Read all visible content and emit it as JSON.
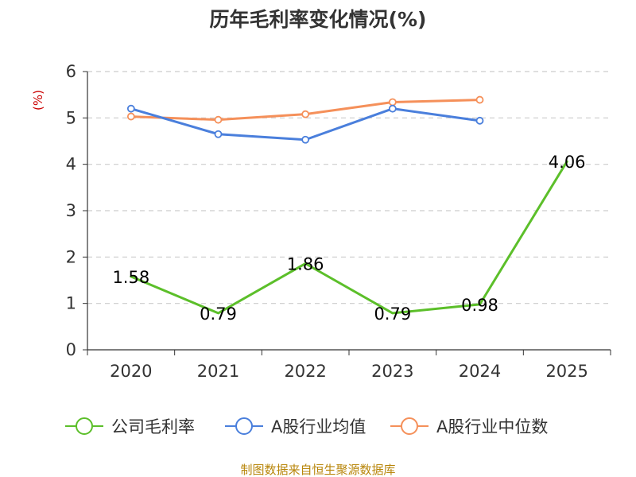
{
  "chart_data": {
    "type": "line",
    "title": "历年毛利率变化情况(%)",
    "ylabel": "(%)",
    "xlabel": "",
    "categories": [
      "2020",
      "2021",
      "2022",
      "2023",
      "2024",
      "2025"
    ],
    "ylim": [
      0,
      6
    ],
    "yticks": [
      0,
      1,
      2,
      3,
      4,
      5,
      6
    ],
    "grid": true,
    "legend_position": "bottom",
    "series": [
      {
        "name": "公司毛利率",
        "color": "#5cbf2a",
        "values": [
          1.58,
          0.79,
          1.86,
          0.79,
          0.98,
          4.06
        ],
        "show_labels": true,
        "show_markers": false
      },
      {
        "name": "A股行业均值",
        "color": "#4a7fdc",
        "values": [
          5.2,
          4.65,
          4.53,
          5.2,
          4.94,
          null
        ],
        "show_labels": false,
        "show_markers": true
      },
      {
        "name": "A股行业中位数",
        "color": "#f5905a",
        "values": [
          5.03,
          4.96,
          5.08,
          5.34,
          5.39,
          null
        ],
        "show_labels": false,
        "show_markers": true
      }
    ]
  },
  "footer": {
    "source": "制图数据来自恒生聚源数据库"
  }
}
